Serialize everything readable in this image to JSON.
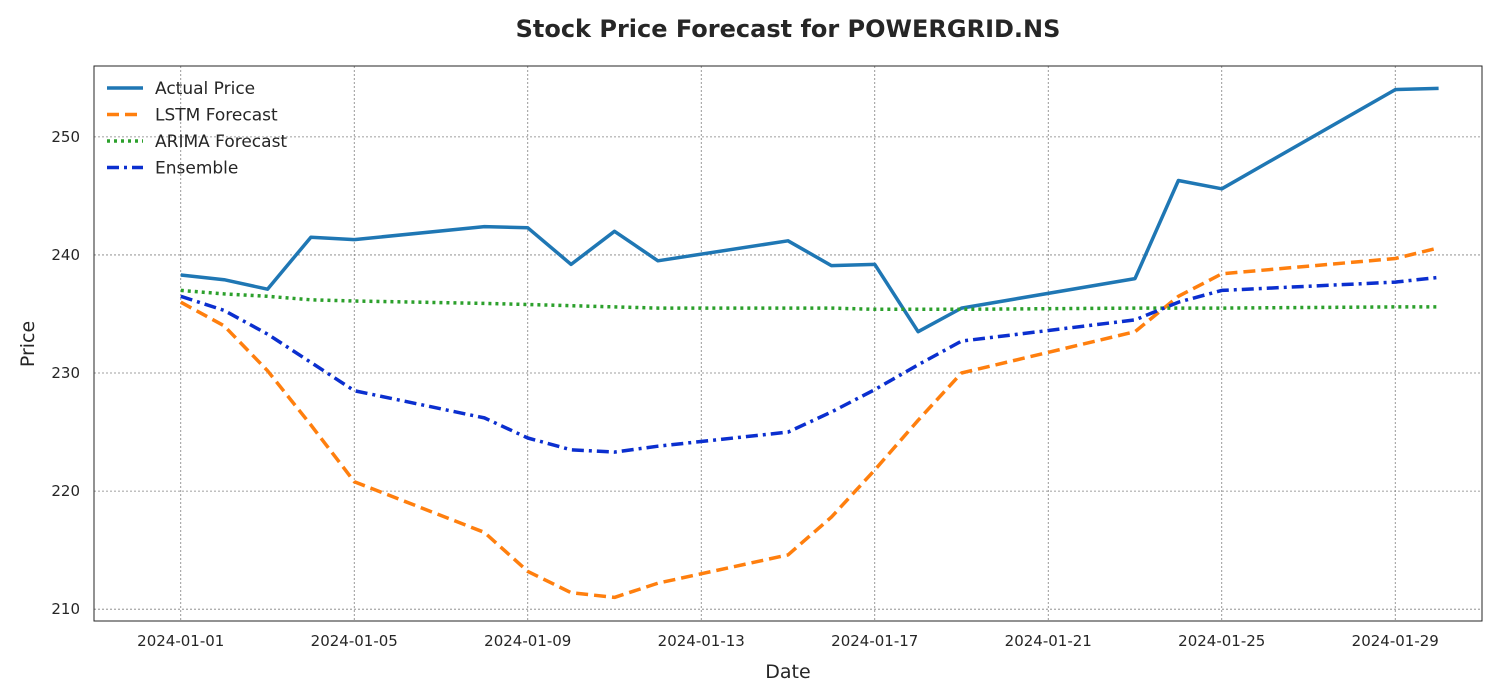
{
  "chart_data": {
    "type": "line",
    "title": "Stock Price Forecast for POWERGRID.NS",
    "xlabel": "Date",
    "ylabel": "Price",
    "ylim": [
      209,
      256
    ],
    "xlim": [
      "2023-12-30",
      "2024-01-31"
    ],
    "grid": true,
    "legend_position": "top-left",
    "yticks": [
      210,
      220,
      230,
      240,
      250
    ],
    "xticks": [
      "2024-01-01",
      "2024-01-05",
      "2024-01-09",
      "2024-01-13",
      "2024-01-17",
      "2024-01-21",
      "2024-01-25",
      "2024-01-29"
    ],
    "x": [
      "2024-01-01",
      "2024-01-02",
      "2024-01-03",
      "2024-01-04",
      "2024-01-05",
      "2024-01-08",
      "2024-01-09",
      "2024-01-10",
      "2024-01-11",
      "2024-01-12",
      "2024-01-15",
      "2024-01-16",
      "2024-01-17",
      "2024-01-18",
      "2024-01-19",
      "2024-01-23",
      "2024-01-24",
      "2024-01-25",
      "2024-01-29",
      "2024-01-30"
    ],
    "series": [
      {
        "name": "Actual Price",
        "color": "#1f77b4",
        "style": "solid",
        "values": [
          238.3,
          237.9,
          237.1,
          241.5,
          241.3,
          242.4,
          242.3,
          239.2,
          242.0,
          239.5,
          241.2,
          239.1,
          239.2,
          233.5,
          235.5,
          238.0,
          246.3,
          245.6,
          254.0,
          254.1
        ]
      },
      {
        "name": "LSTM Forecast",
        "color": "#ff7f0e",
        "style": "dashed",
        "values": [
          236.0,
          234.0,
          230.2,
          225.6,
          220.8,
          216.5,
          213.2,
          211.4,
          211.0,
          212.2,
          214.6,
          217.8,
          221.8,
          226.0,
          230.0,
          233.5,
          236.5,
          238.4,
          239.7,
          240.6
        ]
      },
      {
        "name": "ARIMA Forecast",
        "color": "#2ca02c",
        "style": "dotted",
        "values": [
          237.0,
          236.7,
          236.5,
          236.2,
          236.1,
          235.9,
          235.8,
          235.7,
          235.6,
          235.5,
          235.5,
          235.5,
          235.4,
          235.4,
          235.4,
          235.5,
          235.5,
          235.5,
          235.6,
          235.6
        ]
      },
      {
        "name": "Ensemble",
        "color": "#0b2fcf",
        "style": "dashdot",
        "values": [
          236.5,
          235.3,
          233.3,
          230.9,
          228.5,
          226.2,
          224.5,
          223.5,
          223.3,
          223.8,
          225.0,
          226.7,
          228.6,
          230.7,
          232.7,
          234.5,
          236.0,
          237.0,
          237.7,
          238.1
        ]
      }
    ]
  }
}
